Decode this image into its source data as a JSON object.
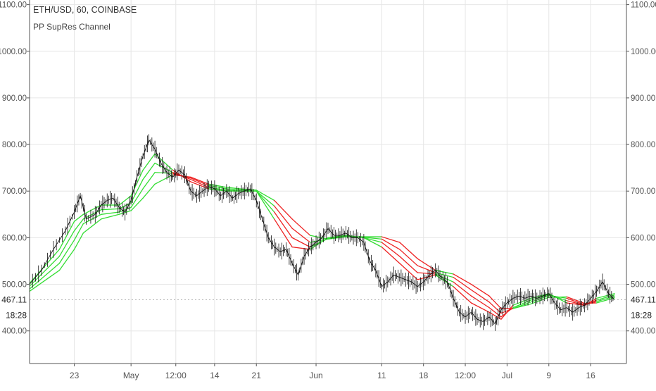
{
  "chart_data": {
    "type": "line",
    "title": "ETH/USD, 60, COINBASE",
    "indicator": "PP SupRes Channel",
    "ylim": [
      330,
      1110
    ],
    "y_ticks": [
      400,
      500,
      600,
      700,
      800,
      900,
      1000,
      1100
    ],
    "y_tick_labels": [
      "400.00",
      "500.00",
      "600.00",
      "700.00",
      "800.00",
      "900.00",
      "1000.00",
      "1100.00"
    ],
    "x_tick_labels": [
      "23",
      "May",
      "12:00",
      "14",
      "21",
      "Jun",
      "11",
      "18",
      "12:00",
      "Jul",
      "9",
      "16"
    ],
    "x_ticks": [
      7.5,
      17,
      24.5,
      31,
      38,
      48,
      59,
      66,
      73,
      80,
      87,
      94
    ],
    "x_range": [
      0,
      100
    ],
    "grid": true,
    "current_price": 467.11,
    "current_price_label": "467.11",
    "countdown_label": "18:28",
    "colors": {
      "bull": "#33dd33",
      "bear": "#ee2222",
      "price": "#111111",
      "grid": "#e6e6e6",
      "axis": "#555555"
    },
    "price_path": [
      [
        0,
        500
      ],
      [
        2,
        530
      ],
      [
        4,
        575
      ],
      [
        6,
        615
      ],
      [
        7.5,
        655
      ],
      [
        8.5,
        690
      ],
      [
        9.5,
        640
      ],
      [
        11,
        650
      ],
      [
        12,
        670
      ],
      [
        13,
        680
      ],
      [
        14,
        685
      ],
      [
        15,
        665
      ],
      [
        16,
        655
      ],
      [
        17,
        680
      ],
      [
        18,
        730
      ],
      [
        19,
        775
      ],
      [
        20,
        810
      ],
      [
        21,
        790
      ],
      [
        22,
        760
      ],
      [
        23,
        740
      ],
      [
        24,
        730
      ],
      [
        25,
        745
      ],
      [
        26,
        735
      ],
      [
        27,
        700
      ],
      [
        28,
        690
      ],
      [
        29,
        700
      ],
      [
        30,
        710
      ],
      [
        31,
        705
      ],
      [
        32,
        690
      ],
      [
        33,
        700
      ],
      [
        34,
        685
      ],
      [
        35,
        695
      ],
      [
        36,
        700
      ],
      [
        37,
        705
      ],
      [
        38,
        680
      ],
      [
        39,
        640
      ],
      [
        40,
        600
      ],
      [
        41,
        580
      ],
      [
        42,
        570
      ],
      [
        43,
        575
      ],
      [
        44,
        545
      ],
      [
        45,
        520
      ],
      [
        46,
        560
      ],
      [
        47,
        580
      ],
      [
        48,
        590
      ],
      [
        49,
        600
      ],
      [
        50,
        620
      ],
      [
        51,
        605
      ],
      [
        52,
        605
      ],
      [
        53,
        610
      ],
      [
        54,
        600
      ],
      [
        55,
        600
      ],
      [
        56,
        590
      ],
      [
        57,
        550
      ],
      [
        58,
        530
      ],
      [
        59,
        495
      ],
      [
        60,
        505
      ],
      [
        61,
        520
      ],
      [
        62,
        515
      ],
      [
        63,
        510
      ],
      [
        64,
        505
      ],
      [
        65,
        495
      ],
      [
        66,
        505
      ],
      [
        67,
        520
      ],
      [
        68,
        530
      ],
      [
        69,
        515
      ],
      [
        70,
        505
      ],
      [
        71,
        470
      ],
      [
        72,
        440
      ],
      [
        73,
        430
      ],
      [
        74,
        440
      ],
      [
        75,
        425
      ],
      [
        76,
        420
      ],
      [
        77,
        430
      ],
      [
        78,
        415
      ],
      [
        79,
        445
      ],
      [
        80,
        460
      ],
      [
        81,
        470
      ],
      [
        82,
        475
      ],
      [
        83,
        470
      ],
      [
        84,
        475
      ],
      [
        85,
        470
      ],
      [
        86,
        475
      ],
      [
        87,
        480
      ],
      [
        88,
        460
      ],
      [
        89,
        445
      ],
      [
        90,
        450
      ],
      [
        91,
        440
      ],
      [
        92,
        450
      ],
      [
        93,
        455
      ],
      [
        94,
        470
      ],
      [
        95,
        485
      ],
      [
        96,
        505
      ],
      [
        97,
        480
      ],
      [
        98,
        467
      ]
    ],
    "channel_lines": [
      {
        "values": [
          [
            0,
            502
          ],
          [
            5,
            575
          ],
          [
            7.5,
            635
          ],
          [
            9,
            650
          ],
          [
            12,
            670
          ],
          [
            15,
            670
          ],
          [
            17,
            690
          ],
          [
            19,
            745
          ],
          [
            21,
            780
          ],
          [
            24,
            745
          ],
          [
            27,
            720
          ],
          [
            30,
            705
          ],
          [
            33,
            700
          ],
          [
            36,
            700
          ],
          [
            38,
            700
          ],
          [
            41,
            640
          ],
          [
            44,
            580
          ],
          [
            47,
            575
          ],
          [
            50,
            600
          ],
          [
            53,
            605
          ],
          [
            56,
            600
          ],
          [
            59,
            580
          ],
          [
            62,
            545
          ],
          [
            65,
            510
          ],
          [
            68,
            520
          ],
          [
            71,
            495
          ],
          [
            74,
            460
          ],
          [
            77,
            440
          ],
          [
            79,
            425
          ],
          [
            81,
            455
          ],
          [
            84,
            470
          ],
          [
            87,
            480
          ],
          [
            90,
            460
          ],
          [
            93,
            455
          ],
          [
            95,
            470
          ],
          [
            98,
            480
          ]
        ],
        "segments": [
          "bull",
          "bull",
          "bull",
          "bull",
          "bull",
          "bull",
          "bull",
          "bull",
          "bull",
          "bear",
          "bear",
          "bull",
          "bull",
          "bull",
          "bull",
          "bear",
          "bear",
          "bull",
          "bull",
          "bull",
          "bull",
          "bear",
          "bear",
          "bear",
          "bull",
          "bear",
          "bear",
          "bear",
          "bear",
          "bull",
          "bull",
          "bull",
          "bear",
          "bear",
          "bull"
        ]
      },
      {
        "values": [
          [
            0,
            496
          ],
          [
            5,
            560
          ],
          [
            7.5,
            615
          ],
          [
            9,
            640
          ],
          [
            12,
            660
          ],
          [
            15,
            662
          ],
          [
            17,
            675
          ],
          [
            19,
            725
          ],
          [
            21,
            760
          ],
          [
            24,
            740
          ],
          [
            27,
            725
          ],
          [
            30,
            708
          ],
          [
            33,
            702
          ],
          [
            36,
            700
          ],
          [
            38,
            700
          ],
          [
            41,
            655
          ],
          [
            44,
            600
          ],
          [
            47,
            580
          ],
          [
            50,
            598
          ],
          [
            53,
            604
          ],
          [
            56,
            600
          ],
          [
            59,
            590
          ],
          [
            62,
            560
          ],
          [
            65,
            525
          ],
          [
            68,
            522
          ],
          [
            71,
            505
          ],
          [
            74,
            475
          ],
          [
            77,
            450
          ],
          [
            79,
            430
          ],
          [
            81,
            450
          ],
          [
            84,
            466
          ],
          [
            87,
            478
          ],
          [
            90,
            465
          ],
          [
            93,
            455
          ],
          [
            95,
            466
          ],
          [
            98,
            477
          ]
        ],
        "segments": [
          "bull",
          "bull",
          "bull",
          "bull",
          "bull",
          "bull",
          "bull",
          "bull",
          "bull",
          "bear",
          "bear",
          "bull",
          "bull",
          "bull",
          "bull",
          "bear",
          "bear",
          "bull",
          "bull",
          "bull",
          "bull",
          "bear",
          "bear",
          "bear",
          "bull",
          "bear",
          "bear",
          "bear",
          "bear",
          "bull",
          "bull",
          "bull",
          "bear",
          "bear",
          "bull"
        ]
      },
      {
        "values": [
          [
            0,
            490
          ],
          [
            5,
            545
          ],
          [
            7.5,
            595
          ],
          [
            9,
            630
          ],
          [
            12,
            650
          ],
          [
            15,
            655
          ],
          [
            17,
            665
          ],
          [
            19,
            705
          ],
          [
            21,
            740
          ],
          [
            24,
            738
          ],
          [
            27,
            728
          ],
          [
            30,
            712
          ],
          [
            33,
            705
          ],
          [
            36,
            702
          ],
          [
            38,
            700
          ],
          [
            41,
            668
          ],
          [
            44,
            620
          ],
          [
            47,
            590
          ],
          [
            50,
            597
          ],
          [
            53,
            603
          ],
          [
            56,
            601
          ],
          [
            59,
            597
          ],
          [
            62,
            575
          ],
          [
            65,
            540
          ],
          [
            68,
            525
          ],
          [
            71,
            515
          ],
          [
            74,
            488
          ],
          [
            77,
            462
          ],
          [
            79,
            438
          ],
          [
            81,
            448
          ],
          [
            84,
            462
          ],
          [
            87,
            476
          ],
          [
            90,
            470
          ],
          [
            93,
            456
          ],
          [
            95,
            463
          ],
          [
            98,
            474
          ]
        ],
        "segments": [
          "bull",
          "bull",
          "bull",
          "bull",
          "bull",
          "bull",
          "bull",
          "bull",
          "bull",
          "bear",
          "bear",
          "bull",
          "bull",
          "bull",
          "bull",
          "bear",
          "bear",
          "bull",
          "bull",
          "bull",
          "bull",
          "bear",
          "bear",
          "bear",
          "bull",
          "bear",
          "bear",
          "bear",
          "bear",
          "bull",
          "bull",
          "bull",
          "bear",
          "bear",
          "bull"
        ]
      },
      {
        "values": [
          [
            0,
            485
          ],
          [
            5,
            530
          ],
          [
            7.5,
            575
          ],
          [
            9,
            610
          ],
          [
            12,
            640
          ],
          [
            15,
            650
          ],
          [
            17,
            658
          ],
          [
            19,
            685
          ],
          [
            21,
            715
          ],
          [
            24,
            735
          ],
          [
            27,
            730
          ],
          [
            30,
            715
          ],
          [
            33,
            708
          ],
          [
            36,
            704
          ],
          [
            38,
            702
          ],
          [
            41,
            680
          ],
          [
            44,
            640
          ],
          [
            47,
            605
          ],
          [
            50,
            597
          ],
          [
            53,
            602
          ],
          [
            56,
            602
          ],
          [
            59,
            602
          ],
          [
            62,
            590
          ],
          [
            65,
            555
          ],
          [
            68,
            530
          ],
          [
            71,
            522
          ],
          [
            74,
            500
          ],
          [
            77,
            475
          ],
          [
            79,
            448
          ],
          [
            81,
            448
          ],
          [
            84,
            458
          ],
          [
            87,
            472
          ],
          [
            90,
            473
          ],
          [
            93,
            459
          ],
          [
            95,
            460
          ],
          [
            98,
            471
          ]
        ],
        "segments": [
          "bull",
          "bull",
          "bull",
          "bull",
          "bull",
          "bull",
          "bull",
          "bull",
          "bull",
          "bear",
          "bear",
          "bull",
          "bull",
          "bull",
          "bull",
          "bear",
          "bear",
          "bull",
          "bull",
          "bull",
          "bull",
          "bear",
          "bear",
          "bear",
          "bull",
          "bear",
          "bear",
          "bear",
          "bear",
          "bull",
          "bull",
          "bull",
          "bear",
          "bear",
          "bull"
        ]
      }
    ]
  }
}
